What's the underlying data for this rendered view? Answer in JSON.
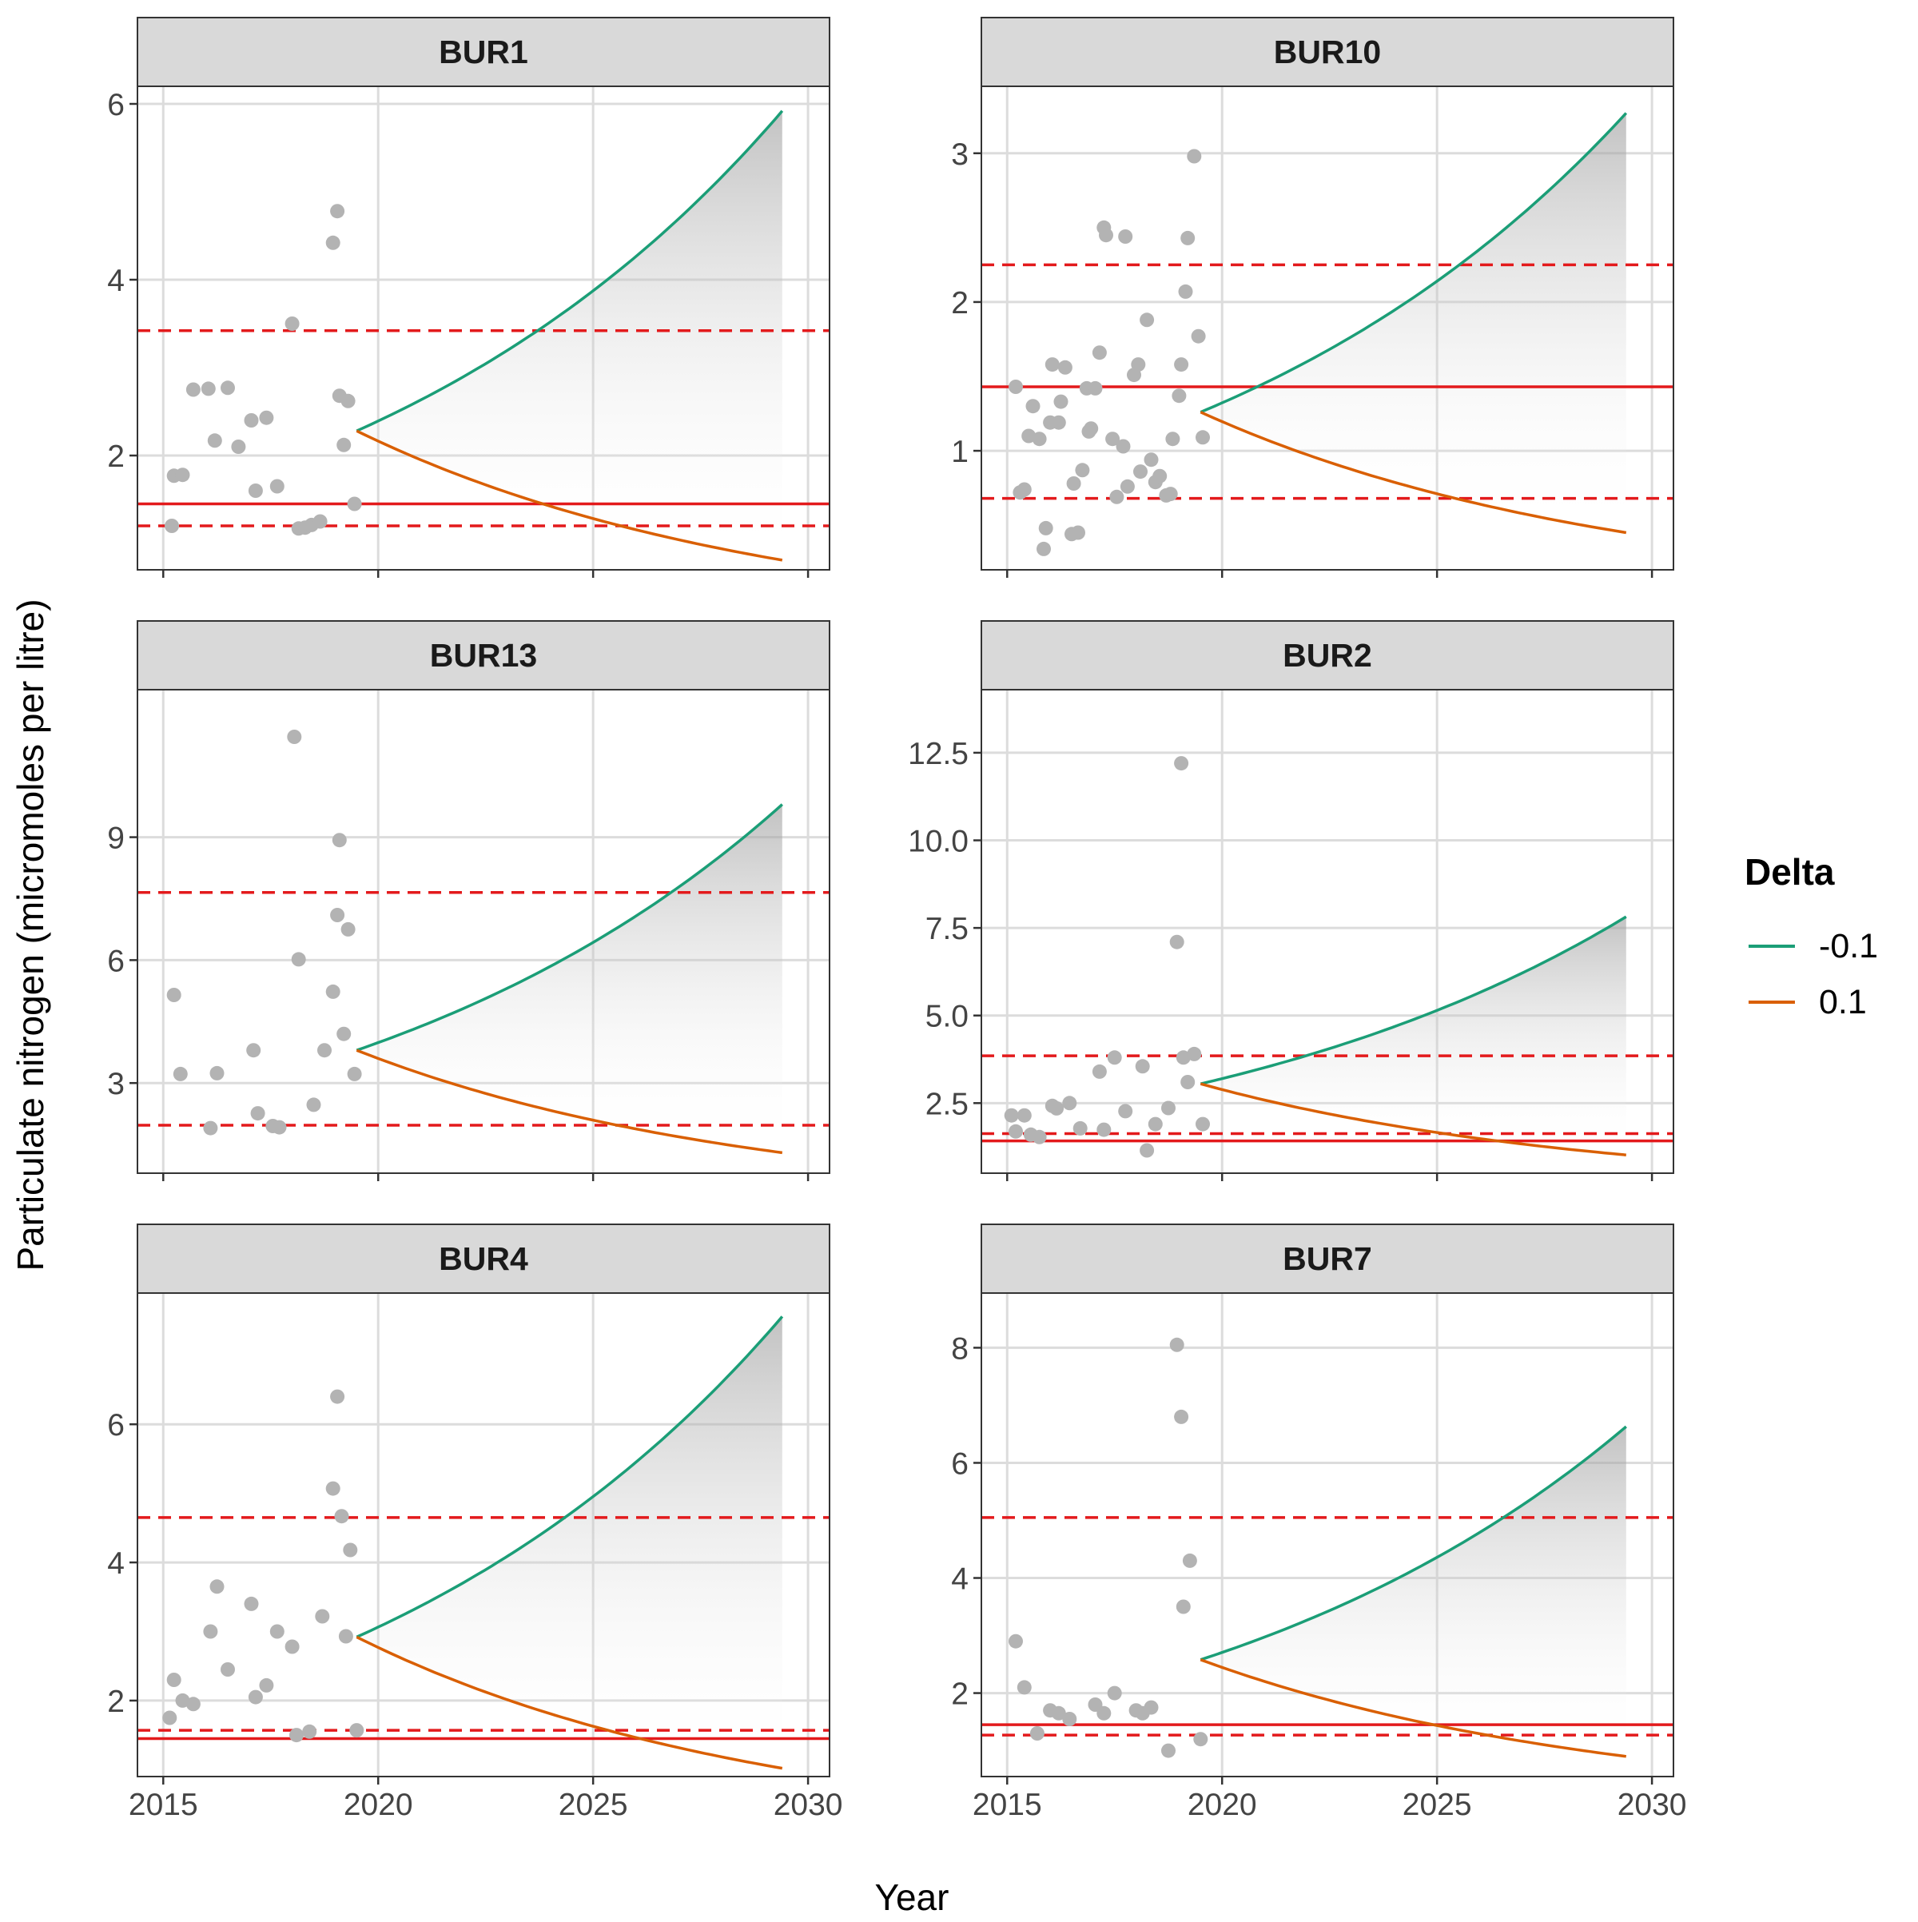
{
  "chart_data": {
    "type": "scatter",
    "xlabel": "Year",
    "ylabel": "Particulate nitrogen (micromoles per litre)",
    "x_ticks": [
      2015,
      2020,
      2025,
      2030
    ],
    "xlim": [
      2014.4,
      2030.5
    ],
    "legend": {
      "title": "Delta",
      "position": "right",
      "entries": [
        {
          "label": "-0.1",
          "color": "#1b9e77"
        },
        {
          "label": "0.1",
          "color": "#d95f02"
        }
      ]
    },
    "colors": {
      "points": "#b3b3b3",
      "mean_line": "#e31a1c",
      "strip_bg": "#d9d9d9",
      "grid": "#dcdcdc",
      "shade": "#9a9a9a"
    },
    "grid": true,
    "panels": [
      {
        "name": "BUR1",
        "ylim": [
          0.7,
          6.2
        ],
        "y_ticks": [
          2,
          4,
          6
        ],
        "y_tick_labels": [
          "2",
          "4",
          "6"
        ],
        "mean": 1.45,
        "band": [
          1.2,
          3.42
        ],
        "projection": {
          "start_x": 2019.5,
          "start_y": 2.28,
          "end_x": 2029.4,
          "upper_end": 5.92,
          "lower_end": 0.81
        },
        "points": [
          [
            2015.2,
            1.2
          ],
          [
            2015.25,
            1.77
          ],
          [
            2015.45,
            1.78
          ],
          [
            2015.7,
            2.75
          ],
          [
            2016.05,
            2.76
          ],
          [
            2016.2,
            2.17
          ],
          [
            2016.5,
            2.77
          ],
          [
            2016.75,
            2.1
          ],
          [
            2017.05,
            2.4
          ],
          [
            2017.15,
            1.6
          ],
          [
            2017.4,
            2.43
          ],
          [
            2017.65,
            1.65
          ],
          [
            2018.0,
            3.5
          ],
          [
            2018.15,
            1.17
          ],
          [
            2018.3,
            1.18
          ],
          [
            2018.45,
            1.21
          ],
          [
            2018.65,
            1.25
          ],
          [
            2018.95,
            4.42
          ],
          [
            2019.05,
            4.78
          ],
          [
            2019.1,
            2.68
          ],
          [
            2019.2,
            2.12
          ],
          [
            2019.3,
            2.62
          ],
          [
            2019.45,
            1.45
          ]
        ]
      },
      {
        "name": "BUR10",
        "ylim": [
          0.2,
          3.45
        ],
        "y_ticks": [
          1,
          2,
          3
        ],
        "y_tick_labels": [
          "1",
          "2",
          "3"
        ],
        "mean": 1.43,
        "band": [
          0.68,
          2.25
        ],
        "projection": {
          "start_x": 2019.5,
          "start_y": 1.26,
          "end_x": 2029.4,
          "upper_end": 3.27,
          "lower_end": 0.45
        },
        "points": [
          [
            2015.2,
            1.43
          ],
          [
            2015.3,
            0.72
          ],
          [
            2015.4,
            0.74
          ],
          [
            2015.5,
            1.1
          ],
          [
            2015.6,
            1.3
          ],
          [
            2015.75,
            1.08
          ],
          [
            2015.85,
            0.34
          ],
          [
            2015.9,
            0.48
          ],
          [
            2016.0,
            1.19
          ],
          [
            2016.05,
            1.58
          ],
          [
            2016.2,
            1.19
          ],
          [
            2016.25,
            1.33
          ],
          [
            2016.35,
            1.56
          ],
          [
            2016.5,
            0.44
          ],
          [
            2016.55,
            0.78
          ],
          [
            2016.65,
            0.45
          ],
          [
            2016.75,
            0.87
          ],
          [
            2016.85,
            1.42
          ],
          [
            2016.9,
            1.13
          ],
          [
            2016.95,
            1.15
          ],
          [
            2017.05,
            1.42
          ],
          [
            2017.15,
            1.66
          ],
          [
            2017.25,
            2.5
          ],
          [
            2017.3,
            2.45
          ],
          [
            2017.45,
            1.08
          ],
          [
            2017.55,
            0.69
          ],
          [
            2017.7,
            1.03
          ],
          [
            2017.75,
            2.44
          ],
          [
            2017.8,
            0.76
          ],
          [
            2017.95,
            1.51
          ],
          [
            2018.05,
            1.58
          ],
          [
            2018.1,
            0.86
          ],
          [
            2018.25,
            1.88
          ],
          [
            2018.35,
            0.94
          ],
          [
            2018.45,
            0.79
          ],
          [
            2018.55,
            0.83
          ],
          [
            2018.7,
            0.7
          ],
          [
            2018.8,
            0.71
          ],
          [
            2018.85,
            1.08
          ],
          [
            2019.0,
            1.37
          ],
          [
            2019.05,
            1.58
          ],
          [
            2019.15,
            2.07
          ],
          [
            2019.2,
            2.43
          ],
          [
            2019.35,
            2.98
          ],
          [
            2019.45,
            1.77
          ],
          [
            2019.55,
            1.09
          ]
        ]
      },
      {
        "name": "BUR13",
        "ylim": [
          0.8,
          12.6
        ],
        "y_ticks": [
          3,
          6,
          9
        ],
        "y_tick_labels": [
          "3",
          "6",
          "9"
        ],
        "mean": null,
        "band": [
          1.97,
          7.65
        ],
        "projection": {
          "start_x": 2019.5,
          "start_y": 3.8,
          "end_x": 2029.4,
          "upper_end": 9.8,
          "lower_end": 1.3
        },
        "points": [
          [
            2015.25,
            5.15
          ],
          [
            2015.4,
            3.22
          ],
          [
            2016.1,
            1.9
          ],
          [
            2016.25,
            3.24
          ],
          [
            2017.1,
            3.8
          ],
          [
            2017.2,
            2.26
          ],
          [
            2017.55,
            1.95
          ],
          [
            2017.7,
            1.92
          ],
          [
            2018.05,
            11.45
          ],
          [
            2018.15,
            6.02
          ],
          [
            2018.5,
            2.47
          ],
          [
            2018.75,
            3.8
          ],
          [
            2018.95,
            5.23
          ],
          [
            2019.05,
            7.1
          ],
          [
            2019.1,
            8.93
          ],
          [
            2019.2,
            4.2
          ],
          [
            2019.3,
            6.75
          ],
          [
            2019.45,
            3.22
          ]
        ]
      },
      {
        "name": "BUR2",
        "ylim": [
          0.5,
          14.3
        ],
        "y_ticks": [
          2.5,
          5.0,
          7.5,
          10.0,
          12.5
        ],
        "y_tick_labels": [
          "2.5",
          "5.0",
          "7.5",
          "10.0",
          "12.5"
        ],
        "mean": 1.42,
        "band": [
          1.63,
          3.85
        ],
        "projection": {
          "start_x": 2019.5,
          "start_y": 3.05,
          "end_x": 2029.4,
          "upper_end": 7.82,
          "lower_end": 1.02
        },
        "points": [
          [
            2015.1,
            2.15
          ],
          [
            2015.2,
            1.69
          ],
          [
            2015.4,
            2.15
          ],
          [
            2015.55,
            1.6
          ],
          [
            2015.75,
            1.53
          ],
          [
            2016.05,
            2.42
          ],
          [
            2016.15,
            2.35
          ],
          [
            2016.45,
            2.5
          ],
          [
            2016.7,
            1.78
          ],
          [
            2017.15,
            3.4
          ],
          [
            2017.25,
            1.74
          ],
          [
            2017.5,
            3.8
          ],
          [
            2017.75,
            2.27
          ],
          [
            2018.15,
            3.55
          ],
          [
            2018.25,
            1.15
          ],
          [
            2018.45,
            1.9
          ],
          [
            2018.75,
            2.36
          ],
          [
            2018.95,
            7.1
          ],
          [
            2019.05,
            12.2
          ],
          [
            2019.1,
            3.8
          ],
          [
            2019.2,
            3.1
          ],
          [
            2019.35,
            3.9
          ],
          [
            2019.55,
            1.9
          ]
        ]
      },
      {
        "name": "BUR4",
        "ylim": [
          0.9,
          7.9
        ],
        "y_ticks": [
          2,
          4,
          6
        ],
        "y_tick_labels": [
          "2",
          "4",
          "6"
        ],
        "mean": 1.45,
        "band": [
          1.57,
          4.65
        ],
        "projection": {
          "start_x": 2019.5,
          "start_y": 2.92,
          "end_x": 2029.4,
          "upper_end": 7.56,
          "lower_end": 1.02
        },
        "points": [
          [
            2015.15,
            1.75
          ],
          [
            2015.25,
            2.3
          ],
          [
            2015.45,
            2.0
          ],
          [
            2015.7,
            1.95
          ],
          [
            2016.1,
            3.0
          ],
          [
            2016.25,
            3.65
          ],
          [
            2016.5,
            2.45
          ],
          [
            2017.05,
            3.4
          ],
          [
            2017.15,
            2.05
          ],
          [
            2017.4,
            2.22
          ],
          [
            2017.65,
            3.0
          ],
          [
            2018.0,
            2.78
          ],
          [
            2018.1,
            1.5
          ],
          [
            2018.4,
            1.55
          ],
          [
            2018.7,
            3.22
          ],
          [
            2018.95,
            5.07
          ],
          [
            2019.05,
            6.4
          ],
          [
            2019.15,
            4.67
          ],
          [
            2019.25,
            2.93
          ],
          [
            2019.35,
            4.18
          ],
          [
            2019.5,
            1.57
          ]
        ]
      },
      {
        "name": "BUR7",
        "ylim": [
          0.55,
          8.95
        ],
        "y_ticks": [
          2,
          4,
          6,
          8
        ],
        "y_tick_labels": [
          "2",
          "4",
          "6",
          "8"
        ],
        "mean": 1.45,
        "band": [
          1.27,
          5.05
        ],
        "projection": {
          "start_x": 2019.5,
          "start_y": 2.58,
          "end_x": 2029.4,
          "upper_end": 6.63,
          "lower_end": 0.9
        },
        "points": [
          [
            2015.2,
            2.9
          ],
          [
            2015.4,
            2.1
          ],
          [
            2015.7,
            1.3
          ],
          [
            2016.0,
            1.7
          ],
          [
            2016.2,
            1.65
          ],
          [
            2016.45,
            1.55
          ],
          [
            2017.05,
            1.8
          ],
          [
            2017.25,
            1.65
          ],
          [
            2017.5,
            2.0
          ],
          [
            2018.0,
            1.7
          ],
          [
            2018.15,
            1.65
          ],
          [
            2018.35,
            1.75
          ],
          [
            2018.75,
            1.0
          ],
          [
            2018.95,
            8.05
          ],
          [
            2019.05,
            6.8
          ],
          [
            2019.1,
            3.5
          ],
          [
            2019.25,
            4.3
          ],
          [
            2019.5,
            1.2
          ]
        ]
      }
    ]
  }
}
